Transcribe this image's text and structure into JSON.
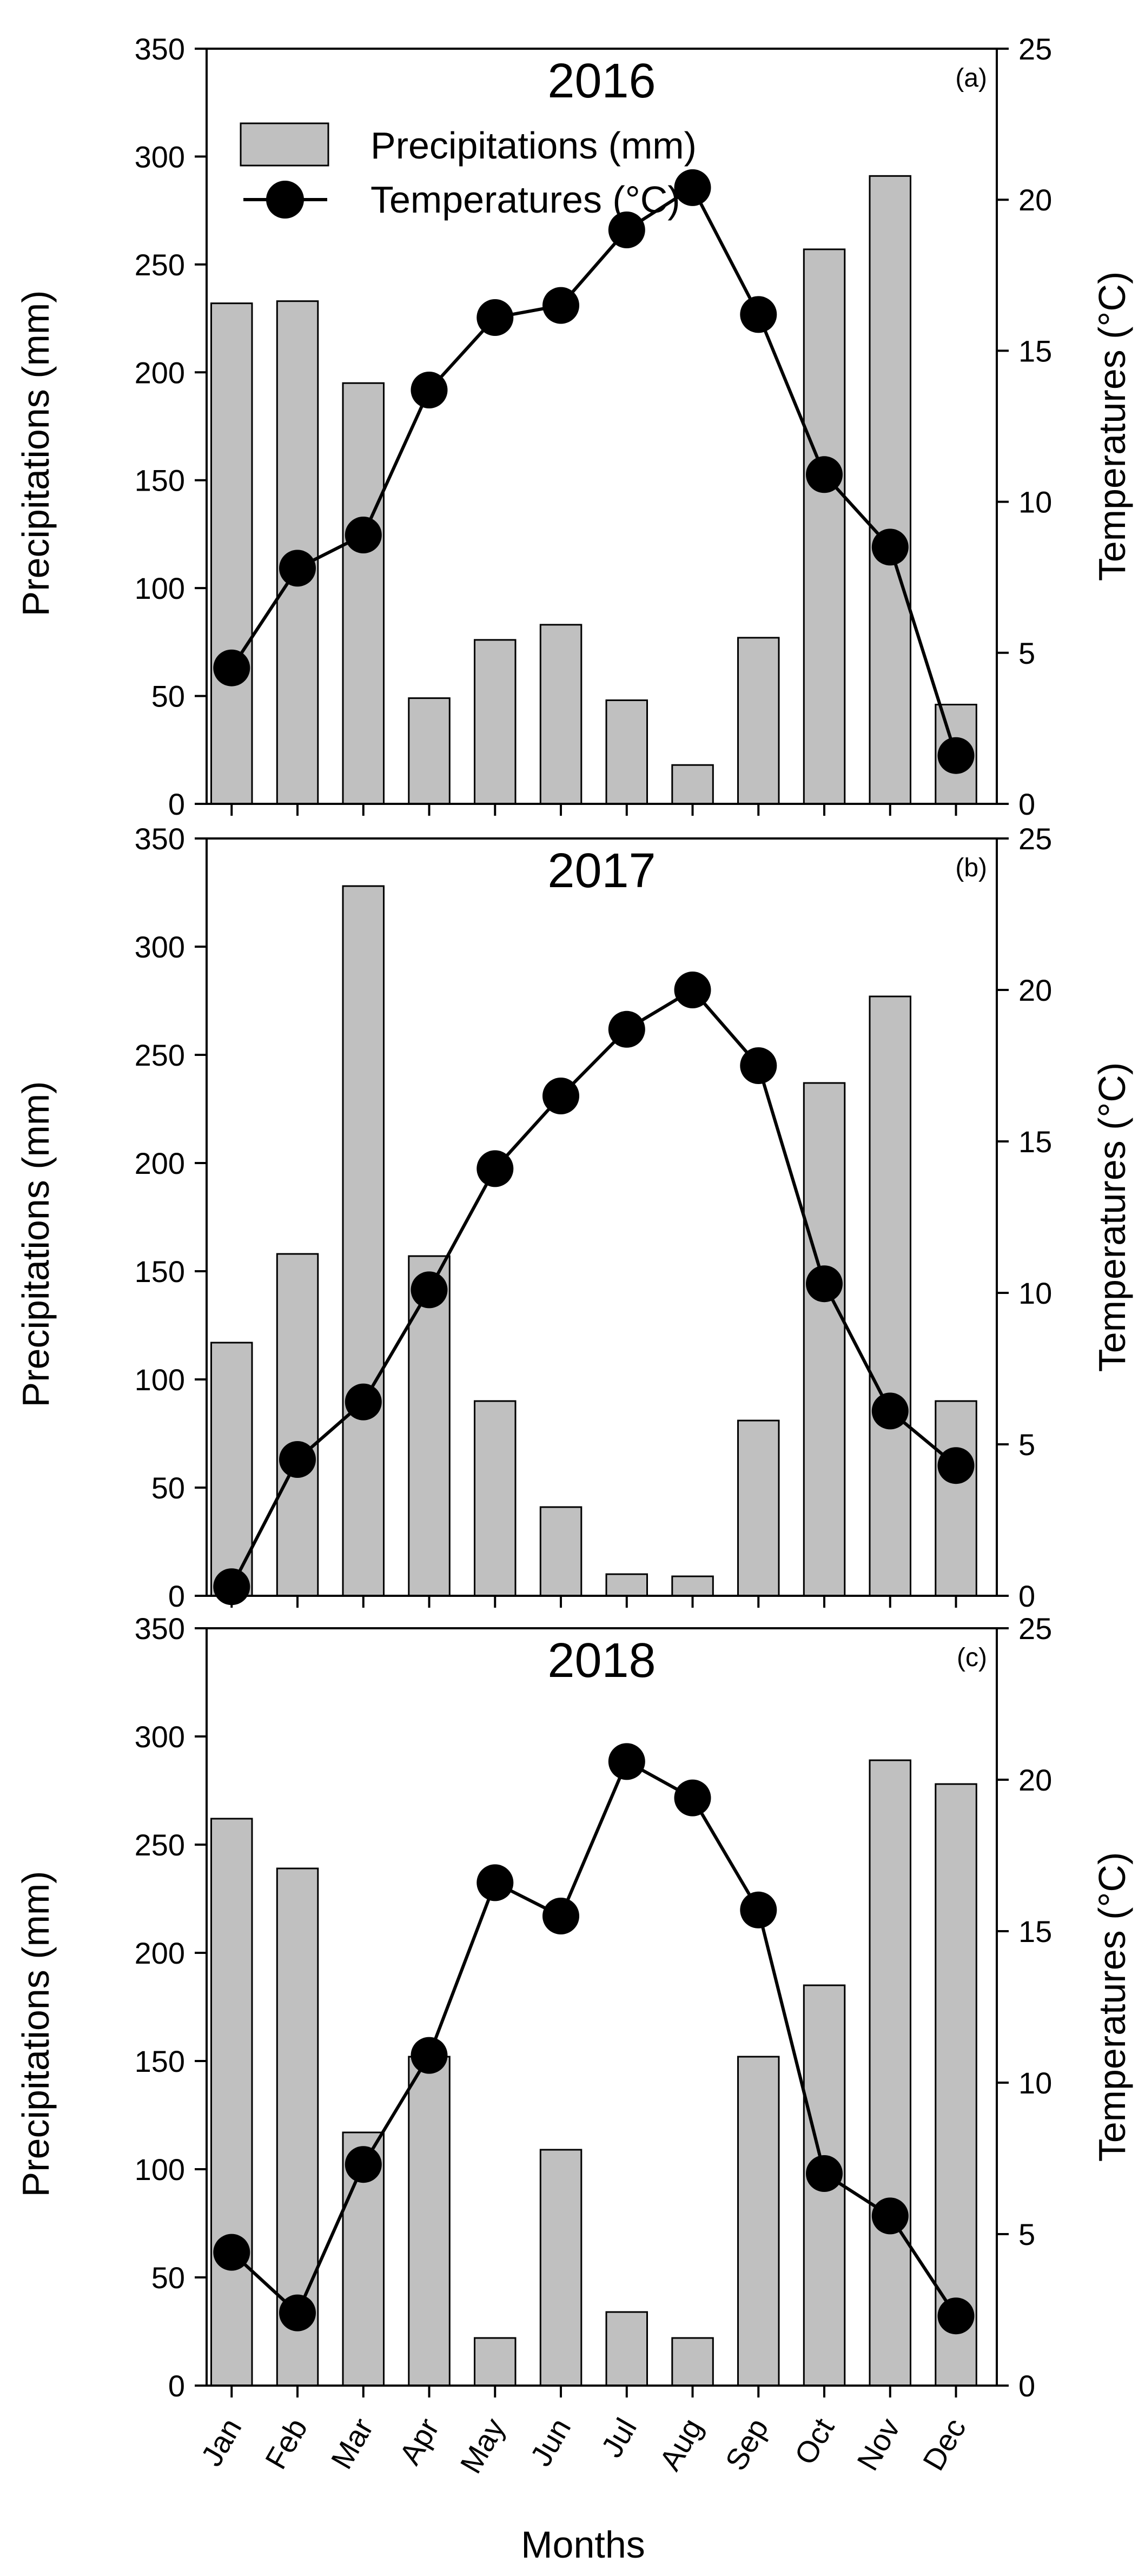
{
  "chart_data": {
    "type": "bar+line",
    "categories": [
      "Jan",
      "Feb",
      "Mar",
      "Apr",
      "May",
      "Jun",
      "Jul",
      "Aug",
      "Sep",
      "Oct",
      "Nov",
      "Dec"
    ],
    "xlabel": "Months",
    "ylabel_left": "Precipitations (mm)",
    "ylabel_right": "Temperatures (°C)",
    "ylim_left": [
      0,
      350
    ],
    "yticks_left": [
      0,
      50,
      100,
      150,
      200,
      250,
      300,
      350
    ],
    "ylim_right": [
      0,
      25
    ],
    "yticks_right": [
      0,
      5,
      10,
      15,
      20,
      25
    ],
    "legend": {
      "position": "top-left",
      "entries": [
        "Precipitations (mm)",
        "Temperatures (°C)"
      ]
    },
    "colors": {
      "bar_fill": "#c0c0c0",
      "bar_edge": "#000000",
      "line": "#000000",
      "marker": "#000000"
    },
    "panels": [
      {
        "title": "2016",
        "tag": "(a)",
        "series": [
          {
            "name": "Precipitations (mm)",
            "axis": "left",
            "type": "bar",
            "values": [
              232,
              233,
              195,
              49,
              76,
              83,
              48,
              18,
              77,
              257,
              291,
              46
            ]
          },
          {
            "name": "Temperatures (°C)",
            "axis": "right",
            "type": "line",
            "values": [
              4.5,
              7.8,
              8.9,
              13.7,
              16.1,
              16.5,
              19.0,
              20.4,
              16.2,
              10.9,
              8.5,
              1.6
            ]
          }
        ]
      },
      {
        "title": "2017",
        "tag": "(b)",
        "series": [
          {
            "name": "Precipitations (mm)",
            "axis": "left",
            "type": "bar",
            "values": [
              117,
              158,
              328,
              157,
              90,
              41,
              10,
              9,
              81,
              237,
              277,
              90
            ]
          },
          {
            "name": "Temperatures (°C)",
            "axis": "right",
            "type": "line",
            "values": [
              0.3,
              4.5,
              6.4,
              10.1,
              14.1,
              16.5,
              18.7,
              20.0,
              17.5,
              10.3,
              6.1,
              4.3
            ]
          }
        ]
      },
      {
        "title": "2018",
        "tag": "(c)",
        "series": [
          {
            "name": "Precipitations (mm)",
            "axis": "left",
            "type": "bar",
            "values": [
              262,
              239,
              117,
              152,
              22,
              109,
              34,
              22,
              152,
              185,
              289,
              278
            ]
          },
          {
            "name": "Temperatures (°C)",
            "axis": "right",
            "type": "line",
            "values": [
              4.4,
              2.4,
              7.3,
              10.9,
              16.6,
              15.5,
              20.6,
              19.4,
              15.7,
              7.0,
              5.6,
              2.3
            ]
          }
        ]
      }
    ]
  }
}
